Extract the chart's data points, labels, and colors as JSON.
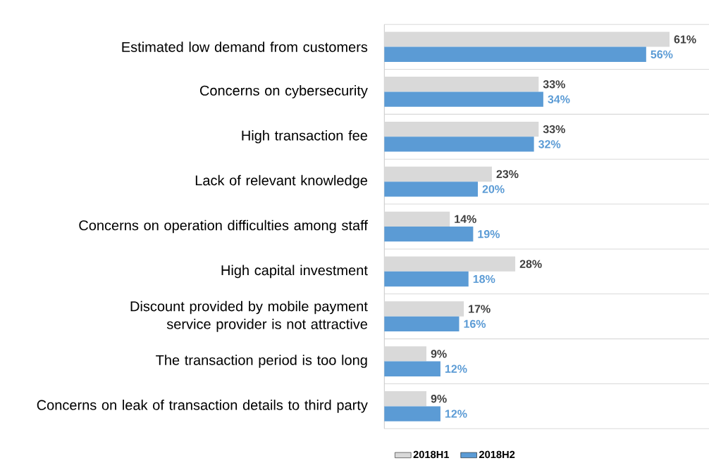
{
  "chart_data": {
    "type": "bar",
    "orientation": "horizontal",
    "categories": [
      "Estimated low demand from customers",
      "Concerns on cybersecurity",
      "High transaction fee",
      "Lack of relevant knowledge",
      "Concerns on operation difficulties among staff",
      "High capital investment",
      "Discount provided by mobile payment service provider is not attractive",
      "The transaction period is too long",
      "Concerns on leak of transaction details to third party"
    ],
    "series": [
      {
        "name": "2018H1",
        "color": "#d9d9d9",
        "values": [
          61,
          33,
          33,
          23,
          14,
          28,
          17,
          9,
          9
        ],
        "value_labels": [
          "61%",
          "33%",
          "33%",
          "23%",
          "14%",
          "28%",
          "17%",
          "9%",
          "9%"
        ]
      },
      {
        "name": "2018H2",
        "color": "#5b9bd5",
        "values": [
          56,
          34,
          32,
          20,
          19,
          18,
          16,
          12,
          12
        ],
        "value_labels": [
          "56%",
          "34%",
          "32%",
          "20%",
          "19%",
          "18%",
          "16%",
          "12%",
          "12%"
        ]
      }
    ],
    "grid": "y",
    "legend": "bottom"
  }
}
